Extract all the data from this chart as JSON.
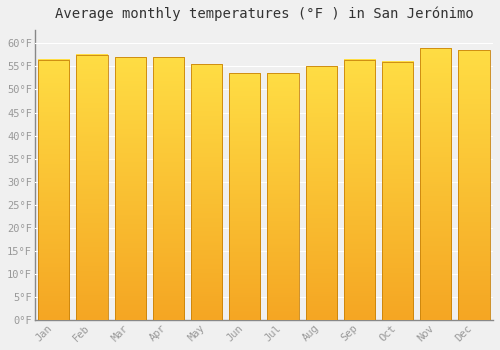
{
  "title": "Average monthly temperatures (°F ) in San Jerónimo",
  "months": [
    "Jan",
    "Feb",
    "Mar",
    "Apr",
    "May",
    "Jun",
    "Jul",
    "Aug",
    "Sep",
    "Oct",
    "Nov",
    "Dec"
  ],
  "values": [
    56.5,
    57.5,
    57.0,
    57.0,
    55.5,
    53.5,
    53.5,
    55.0,
    56.5,
    56.0,
    59.0,
    58.5
  ],
  "bar_color_bottom": "#F5A623",
  "bar_color_top": "#FFDD44",
  "bar_edge_color": "#C8820A",
  "background_color": "#F0F0F0",
  "plot_bg_color": "#F0F0F0",
  "grid_color": "#FFFFFF",
  "ylim": [
    0,
    63
  ],
  "yticks": [
    0,
    5,
    10,
    15,
    20,
    25,
    30,
    35,
    40,
    45,
    50,
    55,
    60
  ],
  "ytick_labels": [
    "0°F",
    "5°F",
    "10°F",
    "15°F",
    "20°F",
    "25°F",
    "30°F",
    "35°F",
    "40°F",
    "45°F",
    "50°F",
    "55°F",
    "60°F"
  ],
  "title_fontsize": 10,
  "tick_fontsize": 7.5,
  "tick_color": "#999999",
  "bar_width": 0.82
}
